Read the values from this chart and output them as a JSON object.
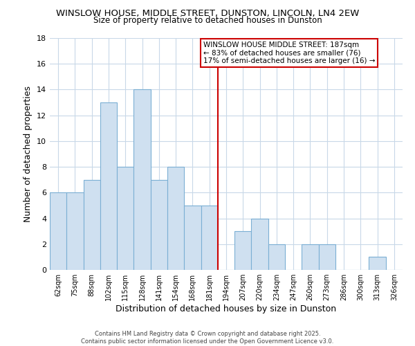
{
  "title": "WINSLOW HOUSE, MIDDLE STREET, DUNSTON, LINCOLN, LN4 2EW",
  "subtitle": "Size of property relative to detached houses in Dunston",
  "xlabel": "Distribution of detached houses by size in Dunston",
  "ylabel": "Number of detached properties",
  "bar_labels": [
    "62sqm",
    "75sqm",
    "88sqm",
    "102sqm",
    "115sqm",
    "128sqm",
    "141sqm",
    "154sqm",
    "168sqm",
    "181sqm",
    "194sqm",
    "207sqm",
    "220sqm",
    "234sqm",
    "247sqm",
    "260sqm",
    "273sqm",
    "286sqm",
    "300sqm",
    "313sqm",
    "326sqm"
  ],
  "bar_values": [
    6,
    6,
    7,
    13,
    8,
    14,
    7,
    8,
    5,
    5,
    0,
    3,
    4,
    2,
    0,
    2,
    2,
    0,
    0,
    1,
    0
  ],
  "bar_color": "#cfe0f0",
  "bar_edge_color": "#7bafd4",
  "vline_x": 9.5,
  "vline_color": "#cc0000",
  "ylim": [
    0,
    18
  ],
  "yticks": [
    0,
    2,
    4,
    6,
    8,
    10,
    12,
    14,
    16,
    18
  ],
  "annotation_line1": "WINSLOW HOUSE MIDDLE STREET: 187sqm",
  "annotation_line2": "← 83% of detached houses are smaller (76)",
  "annotation_line3": "17% of semi-detached houses are larger (16) →",
  "footer_line1": "Contains HM Land Registry data © Crown copyright and database right 2025.",
  "footer_line2": "Contains public sector information licensed under the Open Government Licence v3.0.",
  "background_color": "#ffffff",
  "grid_color": "#c8d8e8"
}
